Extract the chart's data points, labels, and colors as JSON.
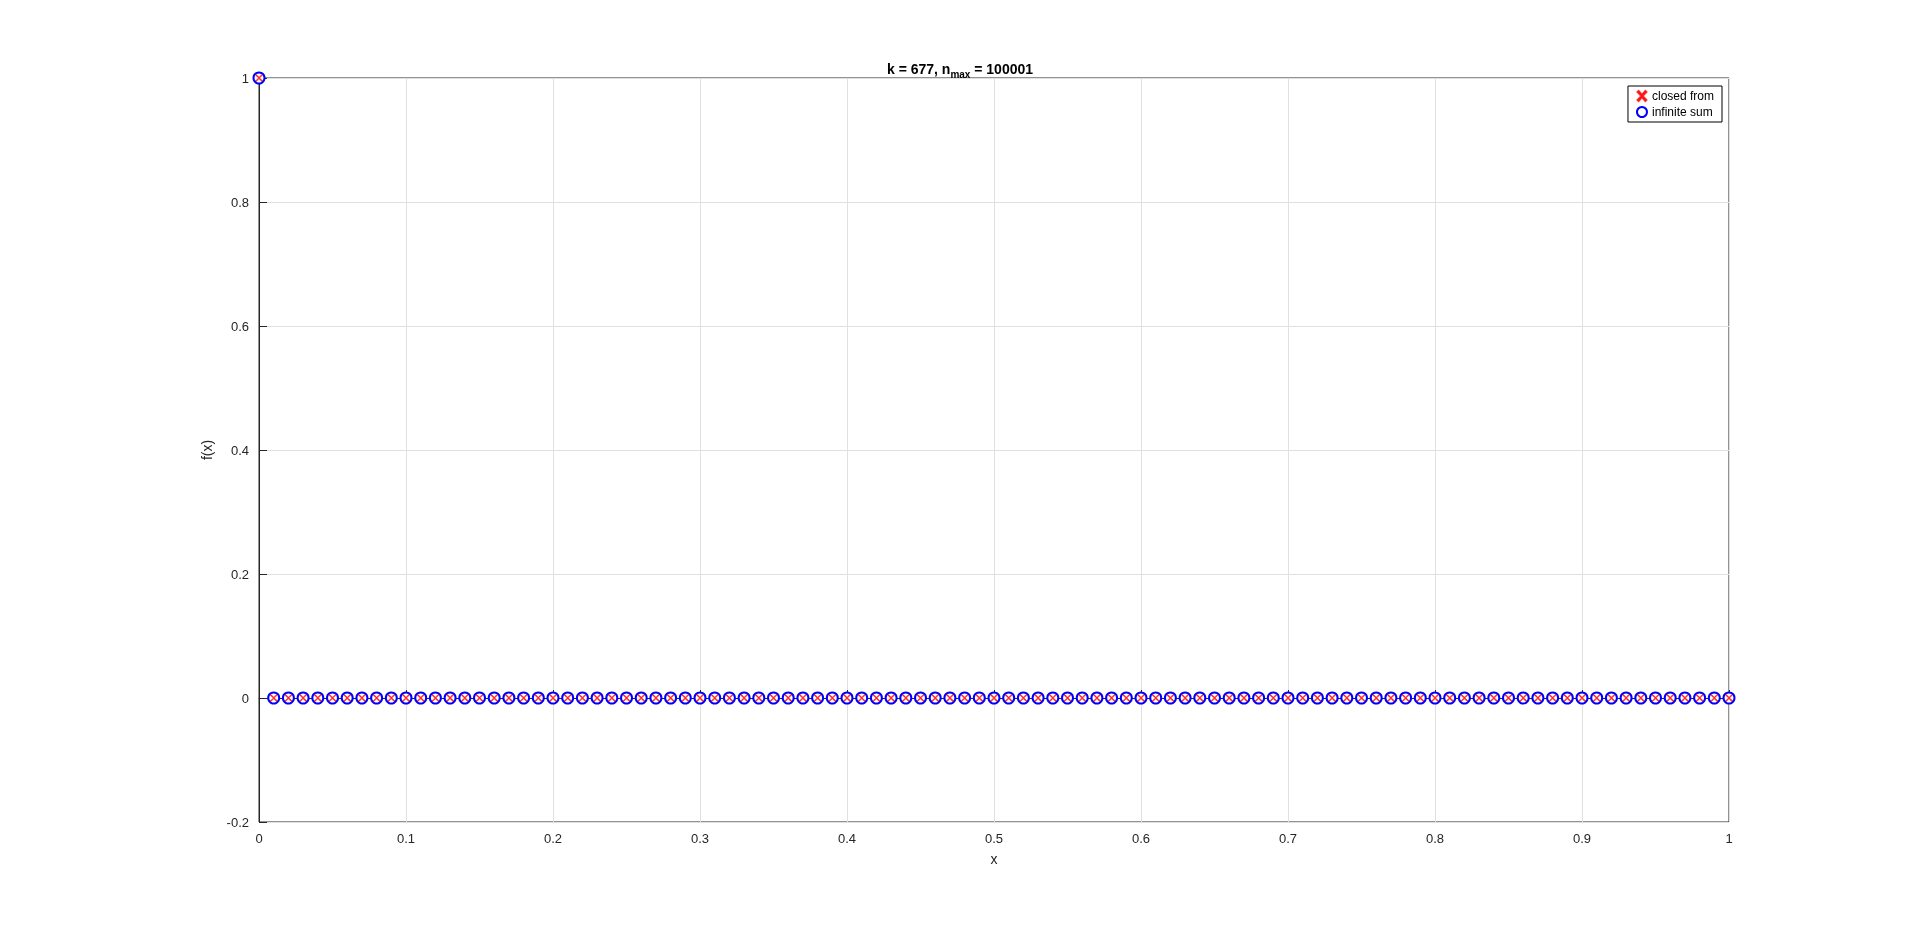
{
  "chart_data": {
    "type": "scatter",
    "title": "k = 677, n$_{max}$ = 100001",
    "xlabel": "x",
    "ylabel": "f(x)",
    "x": [
      0,
      0.01,
      0.02,
      0.03,
      0.04,
      0.05,
      0.06,
      0.07,
      0.08,
      0.09,
      0.1,
      0.11,
      0.12,
      0.13,
      0.14,
      0.15,
      0.16,
      0.17,
      0.18,
      0.19,
      0.2,
      0.21,
      0.22,
      0.23,
      0.24,
      0.25,
      0.26,
      0.27,
      0.28,
      0.29,
      0.3,
      0.31,
      0.32,
      0.33,
      0.34,
      0.35,
      0.36,
      0.37,
      0.38,
      0.39,
      0.4,
      0.41,
      0.42,
      0.43,
      0.44,
      0.45,
      0.46,
      0.47,
      0.48,
      0.49,
      0.5,
      0.51,
      0.52,
      0.53,
      0.54,
      0.55,
      0.56,
      0.57,
      0.58,
      0.59,
      0.6,
      0.61,
      0.62,
      0.63,
      0.64,
      0.65,
      0.66,
      0.67,
      0.68,
      0.69,
      0.7,
      0.71,
      0.72,
      0.73,
      0.74,
      0.75,
      0.76,
      0.77,
      0.78,
      0.79,
      0.8,
      0.81,
      0.82,
      0.83,
      0.84,
      0.85,
      0.86,
      0.87,
      0.88,
      0.89,
      0.9,
      0.91,
      0.92,
      0.93,
      0.94,
      0.95,
      0.96,
      0.97,
      0.98,
      0.99,
      1
    ],
    "series": [
      {
        "name": "infinite sum",
        "color": "#0000ff",
        "marker": "circle",
        "values": [
          1,
          0,
          0,
          0,
          0,
          0,
          0,
          0,
          0,
          0,
          0,
          0,
          0,
          0,
          0,
          0,
          0,
          0,
          0,
          0,
          0,
          0,
          0,
          0,
          0,
          0,
          0,
          0,
          0,
          0,
          0,
          0,
          0,
          0,
          0,
          0,
          0,
          0,
          0,
          0,
          0,
          0,
          0,
          0,
          0,
          0,
          0,
          0,
          0,
          0,
          0,
          0,
          0,
          0,
          0,
          0,
          0,
          0,
          0,
          0,
          0,
          0,
          0,
          0,
          0,
          0,
          0,
          0,
          0,
          0,
          0,
          0,
          0,
          0,
          0,
          0,
          0,
          0,
          0,
          0,
          0,
          0,
          0,
          0,
          0,
          0,
          0,
          0,
          0,
          0,
          0,
          0,
          0,
          0,
          0,
          0,
          0,
          0,
          0,
          0,
          0
        ]
      },
      {
        "name": "closed from",
        "color": "#ff0000",
        "marker": "cross",
        "values": [
          1,
          0,
          0,
          0,
          0,
          0,
          0,
          0,
          0,
          0,
          0,
          0,
          0,
          0,
          0,
          0,
          0,
          0,
          0,
          0,
          0,
          0,
          0,
          0,
          0,
          0,
          0,
          0,
          0,
          0,
          0,
          0,
          0,
          0,
          0,
          0,
          0,
          0,
          0,
          0,
          0,
          0,
          0,
          0,
          0,
          0,
          0,
          0,
          0,
          0,
          0,
          0,
          0,
          0,
          0,
          0,
          0,
          0,
          0,
          0,
          0,
          0,
          0,
          0,
          0,
          0,
          0,
          0,
          0,
          0,
          0,
          0,
          0,
          0,
          0,
          0,
          0,
          0,
          0,
          0,
          0,
          0,
          0,
          0,
          0,
          0,
          0,
          0,
          0,
          0,
          0,
          0,
          0,
          0,
          0,
          0,
          0,
          0,
          0,
          0,
          0
        ]
      }
    ],
    "xlim": [
      0,
      1
    ],
    "xticks": [
      0,
      0.1,
      0.2,
      0.3,
      0.4,
      0.5,
      0.6,
      0.7,
      0.8,
      0.9,
      1
    ],
    "ylim": [
      -0.2,
      1
    ],
    "yticks": [
      -0.2,
      0,
      0.2,
      0.4,
      0.6,
      0.8,
      1
    ],
    "grid": true,
    "legend": "top right"
  }
}
